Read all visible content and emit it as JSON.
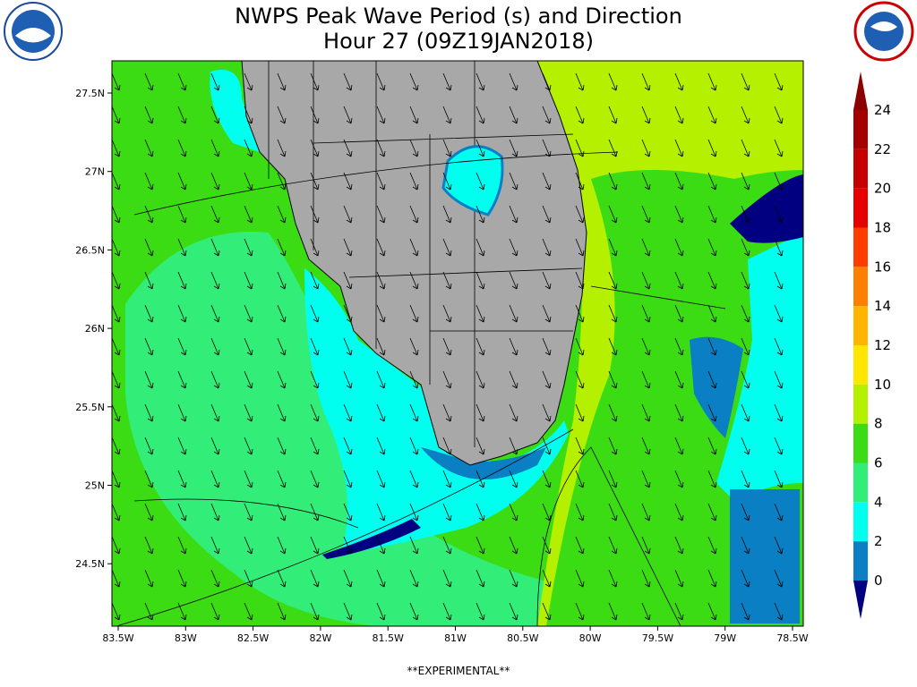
{
  "header": {
    "title": "NWPS Peak Wave Period (s) and Direction",
    "subtitle": "Hour 27 (09Z19JAN2018)"
  },
  "map": {
    "lon_labels": [
      "83.5W",
      "83W",
      "82.5W",
      "82W",
      "81.5W",
      "81W",
      "80.5W",
      "80W",
      "79.5W",
      "79W",
      "78.5W"
    ],
    "lat_labels": [
      "27.5N",
      "27N",
      "26.5N",
      "26N",
      "25.5N",
      "25N",
      "24.5N"
    ]
  },
  "colorbar": {
    "levels": [
      24,
      22,
      20,
      18,
      16,
      14,
      12,
      10,
      8,
      6,
      4,
      2,
      0
    ],
    "colors": [
      "#8b0000",
      "#a50000",
      "#c40000",
      "#e60000",
      "#ff3c00",
      "#ff7f00",
      "#ffb400",
      "#ffe600",
      "#b4f000",
      "#3cdc14",
      "#32ee78",
      "#00ffee",
      "#0a7fc4",
      "#000080"
    ]
  },
  "footer": "**EXPERIMENTAL**"
}
